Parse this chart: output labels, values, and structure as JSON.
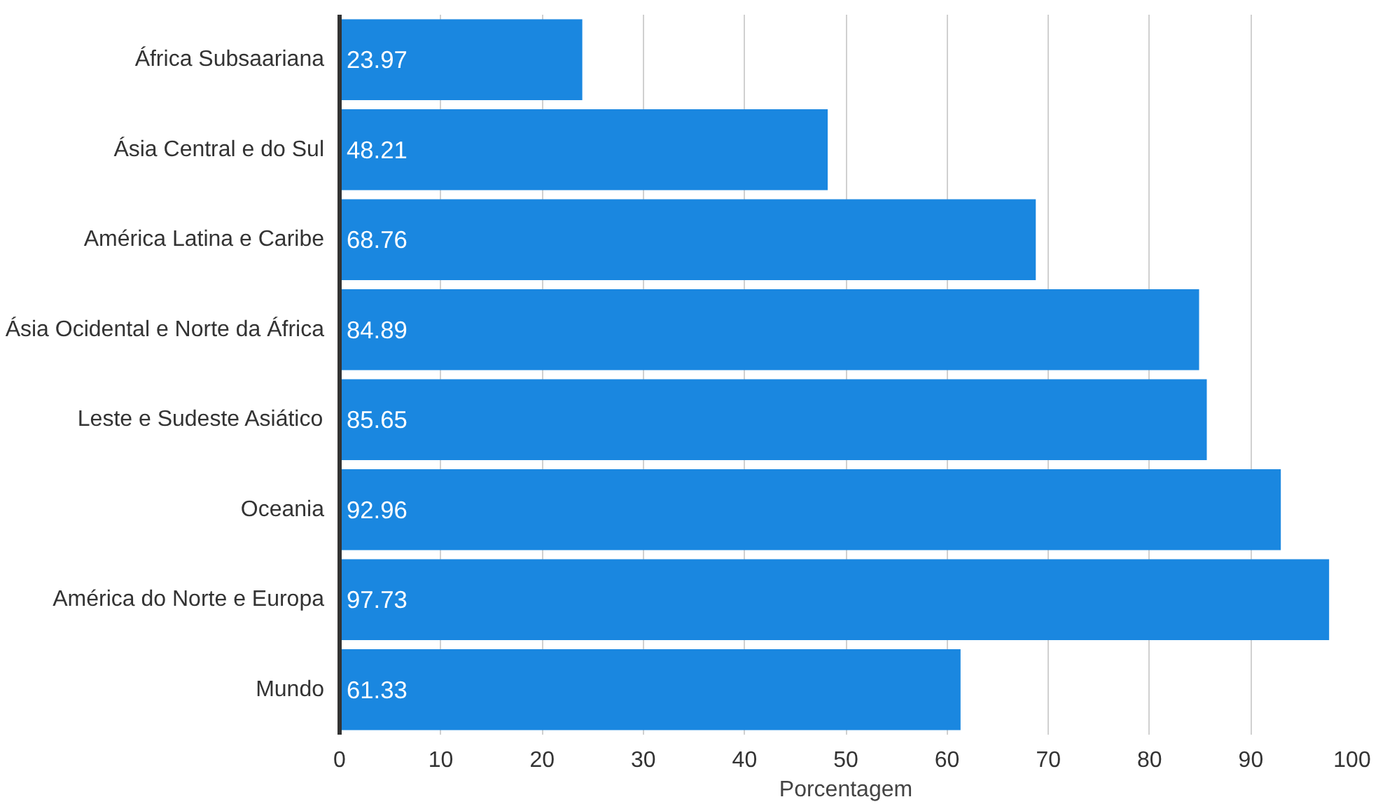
{
  "chart_data": {
    "type": "bar",
    "orientation": "horizontal",
    "xlabel": "Porcentagem",
    "categories": [
      "África Subsaariana",
      "Ásia Central e do Sul",
      "América Latina e Caribe",
      "Ásia Ocidental e Norte da África",
      "Leste e Sudeste Asiático",
      "Oceania",
      "América do Norte e Europa",
      "Mundo"
    ],
    "values": [
      23.97,
      48.21,
      68.76,
      84.89,
      85.65,
      92.96,
      97.73,
      61.33
    ],
    "color": "#1a87e0",
    "data_labels": true,
    "grid": "x",
    "xlim": [
      0,
      100
    ],
    "xticks": [
      0,
      10,
      20,
      30,
      40,
      50,
      60,
      70,
      80,
      90,
      100
    ]
  }
}
